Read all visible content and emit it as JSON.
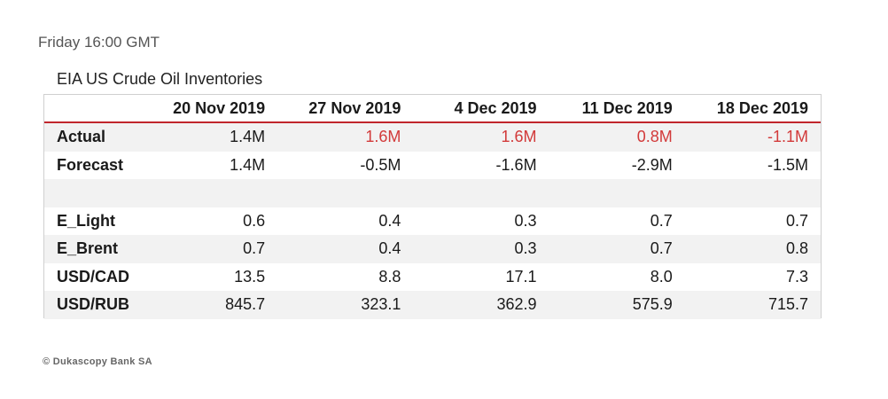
{
  "header": {
    "timestamp": "Friday 16:00 GMT"
  },
  "table": {
    "title": "EIA US Crude Oil Inventories",
    "columns": [
      "20 Nov 2019",
      "27 Nov 2019",
      "4 Dec 2019",
      "11 Dec 2019",
      "18 Dec 2019"
    ],
    "rows": [
      {
        "label": "Actual",
        "values": [
          "1.4M",
          "1.6M",
          "1.6M",
          "0.8M",
          "-1.1M"
        ]
      },
      {
        "label": "Forecast",
        "values": [
          "1.4M",
          "-0.5M",
          "-1.6M",
          "-2.9M",
          "-1.5M"
        ]
      },
      {
        "label": "",
        "values": [
          "",
          "",
          "",
          "",
          ""
        ]
      },
      {
        "label": "E_Light",
        "values": [
          "0.6",
          "0.4",
          "0.3",
          "0.7",
          "0.7"
        ]
      },
      {
        "label": "E_Brent",
        "values": [
          "0.7",
          "0.4",
          "0.3",
          "0.7",
          "0.8"
        ]
      },
      {
        "label": "USD/CAD",
        "values": [
          "13.5",
          "8.8",
          "17.1",
          "8.0",
          "7.3"
        ]
      },
      {
        "label": "USD/RUB",
        "values": [
          "845.7",
          "323.1",
          "362.9",
          "575.9",
          "715.7"
        ]
      }
    ],
    "highlight_color": "#d23a3a",
    "rule_color": "#c0262c"
  },
  "footer": {
    "copyright": "© Dukascopy Bank SA"
  }
}
